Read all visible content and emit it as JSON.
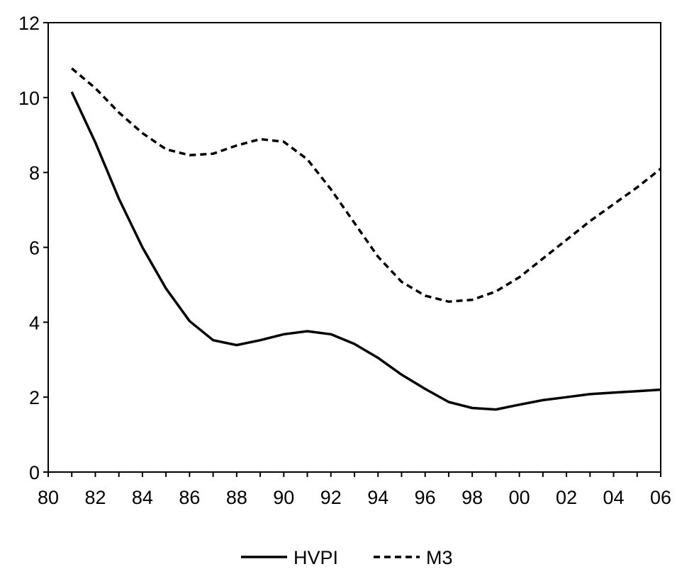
{
  "chart_data": {
    "type": "line",
    "title": "",
    "xlabel": "",
    "ylabel": "",
    "xlim": [
      1980,
      2006
    ],
    "ylim": [
      0,
      12
    ],
    "x_ticks": [
      1980,
      1982,
      1984,
      1986,
      1988,
      1990,
      1992,
      1994,
      1996,
      1998,
      2000,
      2002,
      2004,
      2006
    ],
    "x_tick_labels": [
      "80",
      "82",
      "84",
      "86",
      "88",
      "90",
      "92",
      "94",
      "96",
      "98",
      "00",
      "02",
      "04",
      "06"
    ],
    "y_ticks": [
      0,
      2,
      4,
      6,
      8,
      10,
      12
    ],
    "y_tick_labels": [
      "0",
      "2",
      "4",
      "6",
      "8",
      "10",
      "12"
    ],
    "grid": false,
    "legend_position": "bottom-center",
    "x": [
      1981,
      1982,
      1983,
      1984,
      1985,
      1986,
      1987,
      1988,
      1989,
      1990,
      1991,
      1992,
      1993,
      1994,
      1995,
      1996,
      1997,
      1998,
      1999,
      2000,
      2001,
      2002,
      2003,
      2004,
      2005,
      2006
    ],
    "series": [
      {
        "name": "HVPI",
        "style": "solid",
        "color": "#000000",
        "values": [
          10.15,
          8.8,
          7.3,
          6.0,
          4.9,
          4.03,
          3.52,
          3.39,
          3.52,
          3.68,
          3.76,
          3.68,
          3.42,
          3.05,
          2.6,
          2.22,
          1.87,
          1.71,
          1.67,
          1.8,
          1.92,
          2.0,
          2.08,
          2.12,
          2.16,
          2.2
        ]
      },
      {
        "name": "M3",
        "style": "dashed",
        "color": "#000000",
        "values": [
          10.78,
          10.25,
          9.6,
          9.05,
          8.62,
          8.46,
          8.5,
          8.72,
          8.89,
          8.82,
          8.35,
          7.55,
          6.65,
          5.75,
          5.08,
          4.71,
          4.55,
          4.6,
          4.82,
          5.2,
          5.7,
          6.2,
          6.7,
          7.15,
          7.6,
          8.1
        ]
      }
    ]
  }
}
